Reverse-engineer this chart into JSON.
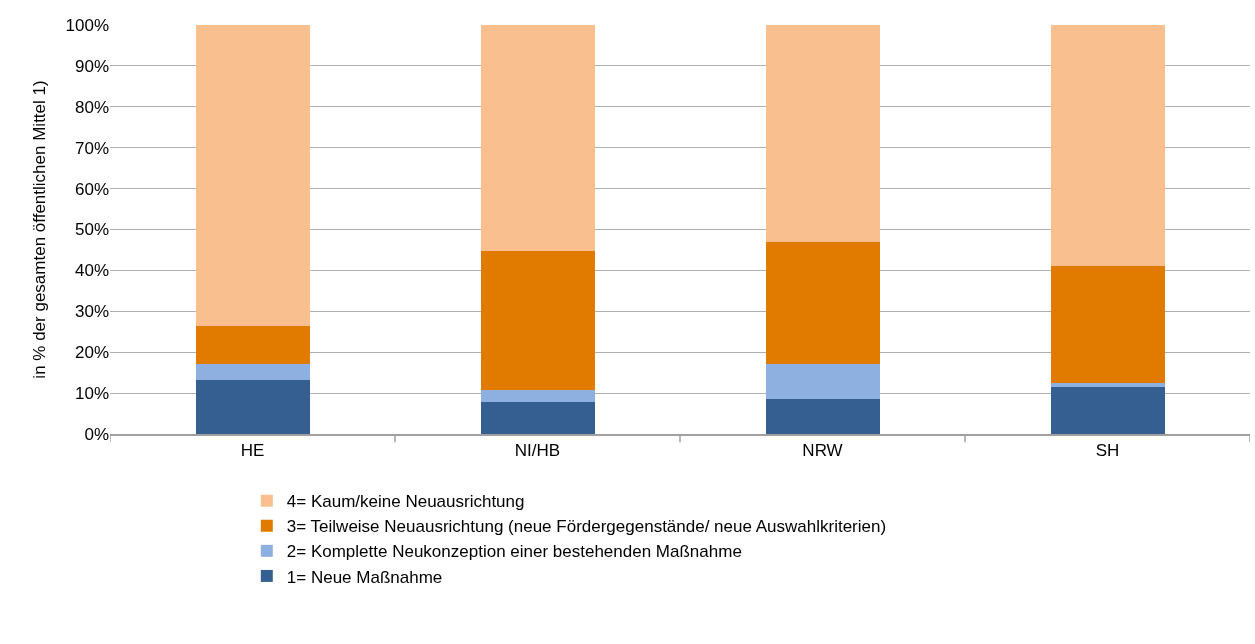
{
  "chart_data": {
    "type": "bar",
    "stacked": true,
    "ylabel": "in % der gesamten öffentlichen Mittel 1)",
    "categories": [
      "HE",
      "NI/HB",
      "NRW",
      "SH"
    ],
    "series": [
      {
        "name": "1= Neue Maßnahme",
        "color": "#355f91",
        "values": [
          13.2,
          7.9,
          8.6,
          11.5
        ]
      },
      {
        "name": "2= Komplette Neukonzeption einer bestehenden Maßnahme",
        "color": "#8db0e0",
        "values": [
          3.8,
          2.9,
          8.4,
          0.9
        ]
      },
      {
        "name": "3= Teilweise Neuausrichtung (neue Fördergegenstände/ neue Auswahlkriterien)",
        "color": "#e07b00",
        "values": [
          9.4,
          34.0,
          29.9,
          28.7
        ]
      },
      {
        "name": "4= Kaum/keine Neuausrichtung",
        "color": "#f9bf8f",
        "values": [
          73.6,
          55.2,
          53.1,
          58.9
        ]
      }
    ],
    "ylim": [
      0,
      100
    ],
    "yticks": [
      {
        "value": 0,
        "label": "0%"
      },
      {
        "value": 10,
        "label": "10%"
      },
      {
        "value": 20,
        "label": "20%"
      },
      {
        "value": 30,
        "label": "30%"
      },
      {
        "value": 40,
        "label": "40%"
      },
      {
        "value": 50,
        "label": "50%"
      },
      {
        "value": 60,
        "label": "60%"
      },
      {
        "value": 70,
        "label": "70%"
      },
      {
        "value": 80,
        "label": "80%"
      },
      {
        "value": 90,
        "label": "90%"
      },
      {
        "value": 100,
        "label": "100%"
      }
    ],
    "grid": "y",
    "legend": "bottom"
  }
}
